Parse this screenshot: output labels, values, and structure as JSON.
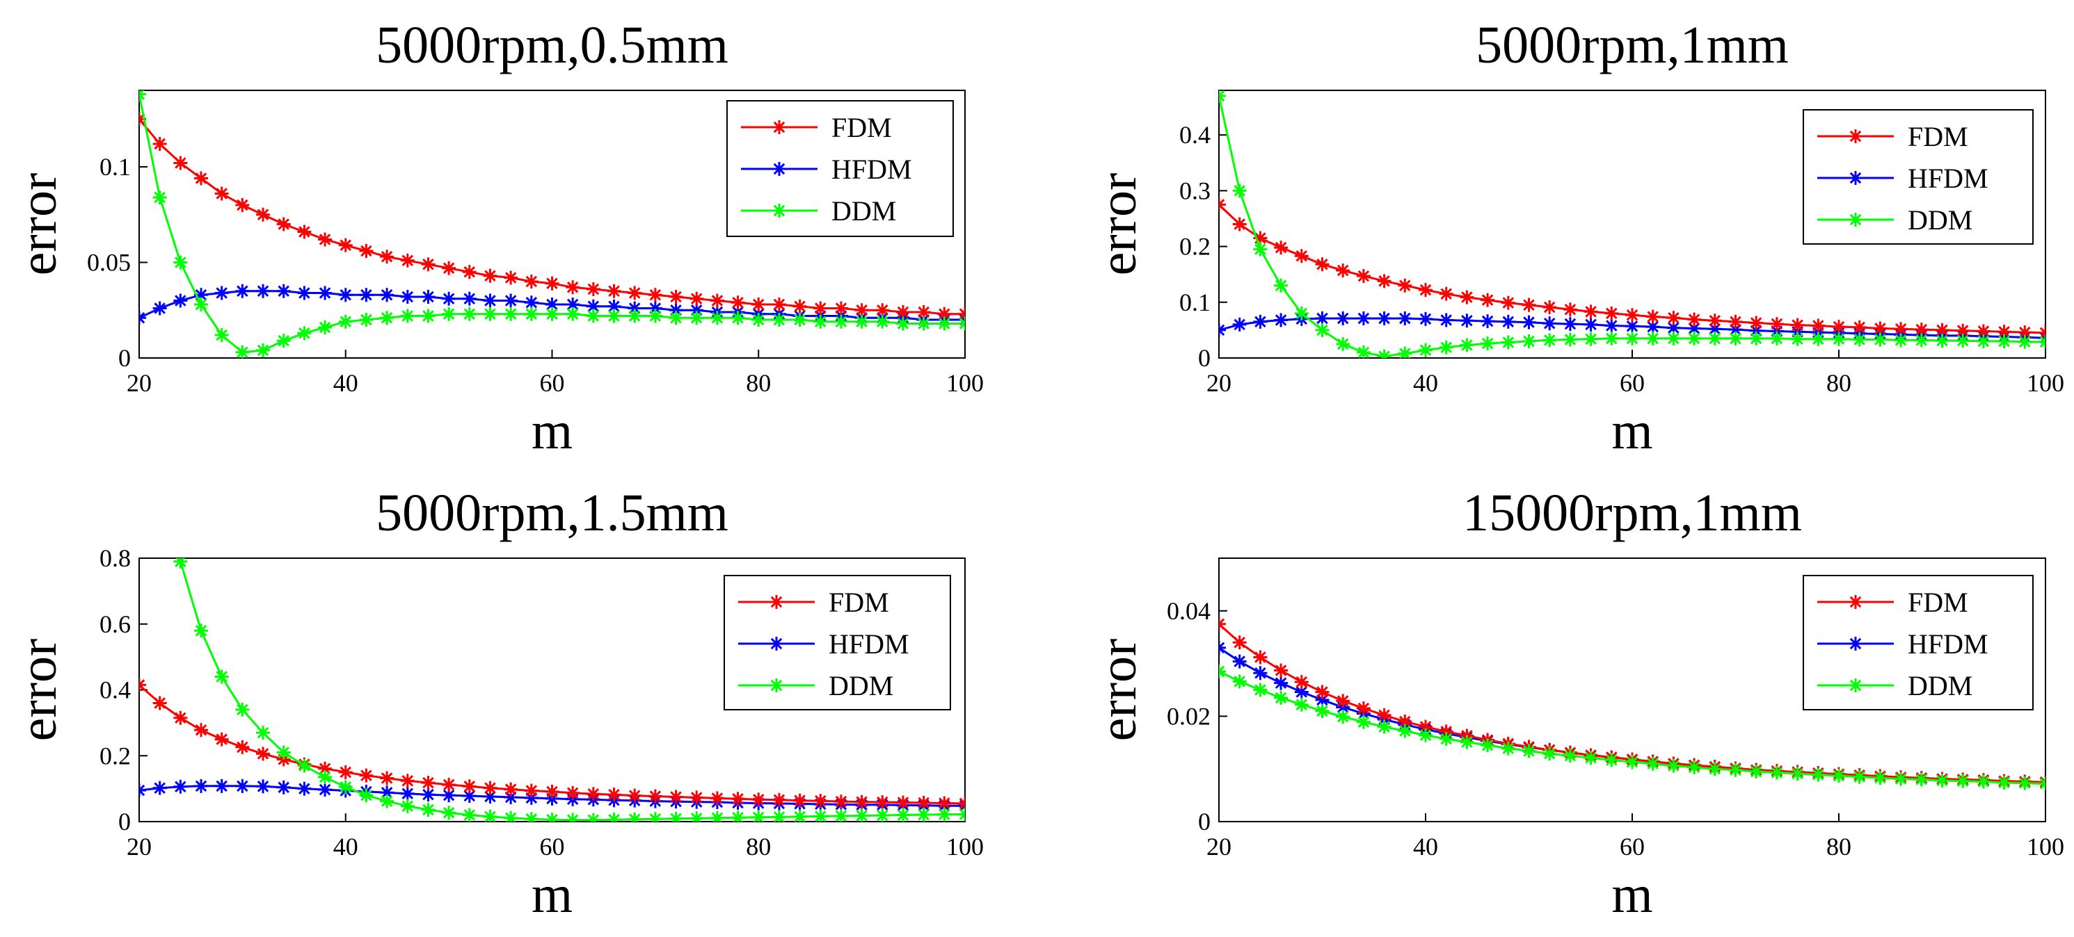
{
  "chart_data": [
    {
      "type": "line",
      "title": "5000rpm,0.5mm",
      "xlabel": "m",
      "ylabel": "error",
      "xlim": [
        20,
        100
      ],
      "ylim": [
        0,
        0.14
      ],
      "xticks": [
        "20",
        "40",
        "60",
        "80",
        "100"
      ],
      "yticks": [
        "0",
        "0.05",
        "0.1"
      ],
      "grid": false,
      "legend_position": "top-right",
      "x": [
        20,
        22,
        24,
        26,
        28,
        30,
        32,
        34,
        36,
        38,
        40,
        42,
        44,
        46,
        48,
        50,
        52,
        54,
        56,
        58,
        60,
        62,
        64,
        66,
        68,
        70,
        72,
        74,
        76,
        78,
        80,
        82,
        84,
        86,
        88,
        90,
        92,
        94,
        96,
        98,
        100
      ],
      "series": [
        {
          "name": "FDM",
          "color": "#ff0000",
          "values": [
            0.125,
            0.112,
            0.102,
            0.094,
            0.086,
            0.08,
            0.075,
            0.07,
            0.066,
            0.062,
            0.059,
            0.056,
            0.053,
            0.051,
            0.049,
            0.047,
            0.045,
            0.043,
            0.042,
            0.04,
            0.039,
            0.037,
            0.036,
            0.035,
            0.034,
            0.033,
            0.032,
            0.031,
            0.03,
            0.029,
            0.028,
            0.028,
            0.027,
            0.026,
            0.026,
            0.025,
            0.025,
            0.024,
            0.024,
            0.023,
            0.023
          ]
        },
        {
          "name": "HFDM",
          "color": "#0000ff",
          "values": [
            0.021,
            0.026,
            0.03,
            0.033,
            0.034,
            0.035,
            0.035,
            0.035,
            0.034,
            0.034,
            0.033,
            0.033,
            0.033,
            0.032,
            0.032,
            0.031,
            0.031,
            0.03,
            0.03,
            0.029,
            0.028,
            0.028,
            0.027,
            0.027,
            0.026,
            0.026,
            0.025,
            0.025,
            0.024,
            0.024,
            0.023,
            0.023,
            0.022,
            0.022,
            0.022,
            0.021,
            0.021,
            0.021,
            0.02,
            0.02,
            0.02
          ]
        },
        {
          "name": "DDM",
          "color": "#00ff00",
          "values": [
            0.138,
            0.084,
            0.05,
            0.028,
            0.012,
            0.003,
            0.004,
            0.009,
            0.013,
            0.016,
            0.019,
            0.02,
            0.021,
            0.022,
            0.022,
            0.023,
            0.023,
            0.023,
            0.023,
            0.023,
            0.023,
            0.023,
            0.022,
            0.022,
            0.022,
            0.022,
            0.021,
            0.021,
            0.021,
            0.021,
            0.02,
            0.02,
            0.02,
            0.019,
            0.019,
            0.019,
            0.019,
            0.018,
            0.018,
            0.018,
            0.018
          ]
        }
      ]
    },
    {
      "type": "line",
      "title": "5000rpm,1mm",
      "xlabel": "m",
      "ylabel": "error",
      "xlim": [
        20,
        100
      ],
      "ylim": [
        0,
        0.48
      ],
      "xticks": [
        "20",
        "40",
        "60",
        "80",
        "100"
      ],
      "yticks": [
        "0",
        "0.1",
        "0.2",
        "0.3",
        "0.4"
      ],
      "grid": false,
      "legend_position": "top-right",
      "x": [
        20,
        22,
        24,
        26,
        28,
        30,
        32,
        34,
        36,
        38,
        40,
        42,
        44,
        46,
        48,
        50,
        52,
        54,
        56,
        58,
        60,
        62,
        64,
        66,
        68,
        70,
        72,
        74,
        76,
        78,
        80,
        82,
        84,
        86,
        88,
        90,
        92,
        94,
        96,
        98,
        100
      ],
      "series": [
        {
          "name": "FDM",
          "color": "#ff0000",
          "values": [
            0.275,
            0.24,
            0.215,
            0.198,
            0.183,
            0.168,
            0.157,
            0.147,
            0.138,
            0.13,
            0.122,
            0.115,
            0.109,
            0.104,
            0.099,
            0.095,
            0.091,
            0.087,
            0.083,
            0.08,
            0.077,
            0.074,
            0.072,
            0.069,
            0.067,
            0.065,
            0.063,
            0.061,
            0.059,
            0.058,
            0.056,
            0.055,
            0.053,
            0.052,
            0.051,
            0.05,
            0.049,
            0.048,
            0.047,
            0.046,
            0.045
          ]
        },
        {
          "name": "HFDM",
          "color": "#0000ff",
          "values": [
            0.05,
            0.06,
            0.065,
            0.068,
            0.07,
            0.071,
            0.071,
            0.071,
            0.071,
            0.071,
            0.07,
            0.068,
            0.067,
            0.066,
            0.065,
            0.064,
            0.062,
            0.061,
            0.06,
            0.058,
            0.057,
            0.056,
            0.054,
            0.053,
            0.052,
            0.051,
            0.049,
            0.048,
            0.047,
            0.046,
            0.045,
            0.044,
            0.043,
            0.042,
            0.041,
            0.04,
            0.04,
            0.039,
            0.038,
            0.037,
            0.036
          ]
        },
        {
          "name": "DDM",
          "color": "#00ff00",
          "values": [
            0.47,
            0.3,
            0.195,
            0.13,
            0.08,
            0.05,
            0.025,
            0.01,
            0.003,
            0.008,
            0.014,
            0.019,
            0.023,
            0.026,
            0.028,
            0.03,
            0.032,
            0.033,
            0.034,
            0.035,
            0.035,
            0.035,
            0.035,
            0.035,
            0.035,
            0.035,
            0.035,
            0.035,
            0.034,
            0.034,
            0.034,
            0.033,
            0.033,
            0.032,
            0.032,
            0.031,
            0.031,
            0.03,
            0.03,
            0.029,
            0.029
          ]
        }
      ]
    },
    {
      "type": "line",
      "title": "5000rpm,1.5mm",
      "xlabel": "m",
      "ylabel": "error",
      "xlim": [
        20,
        100
      ],
      "ylim": [
        0,
        0.8
      ],
      "xticks": [
        "20",
        "40",
        "60",
        "80",
        "100"
      ],
      "yticks": [
        "0",
        "0.2",
        "0.4",
        "0.6",
        "0.8"
      ],
      "grid": false,
      "legend_position": "top-right",
      "x": [
        20,
        22,
        24,
        26,
        28,
        30,
        32,
        34,
        36,
        38,
        40,
        42,
        44,
        46,
        48,
        50,
        52,
        54,
        56,
        58,
        60,
        62,
        64,
        66,
        68,
        70,
        72,
        74,
        76,
        78,
        80,
        82,
        84,
        86,
        88,
        90,
        92,
        94,
        96,
        98,
        100
      ],
      "series": [
        {
          "name": "FDM",
          "color": "#ff0000",
          "values": [
            0.415,
            0.36,
            0.315,
            0.278,
            0.25,
            0.226,
            0.206,
            0.189,
            0.174,
            0.161,
            0.15,
            0.14,
            0.132,
            0.124,
            0.118,
            0.112,
            0.107,
            0.102,
            0.098,
            0.094,
            0.091,
            0.087,
            0.084,
            0.082,
            0.079,
            0.077,
            0.075,
            0.073,
            0.071,
            0.069,
            0.067,
            0.066,
            0.064,
            0.063,
            0.061,
            0.06,
            0.059,
            0.058,
            0.057,
            0.056,
            0.055
          ]
        },
        {
          "name": "HFDM",
          "color": "#0000ff",
          "values": [
            0.095,
            0.102,
            0.106,
            0.108,
            0.108,
            0.108,
            0.107,
            0.104,
            0.1,
            0.097,
            0.094,
            0.091,
            0.088,
            0.085,
            0.082,
            0.08,
            0.078,
            0.076,
            0.074,
            0.072,
            0.07,
            0.068,
            0.067,
            0.065,
            0.064,
            0.062,
            0.061,
            0.06,
            0.059,
            0.057,
            0.056,
            0.055,
            0.054,
            0.053,
            0.052,
            0.051,
            0.051,
            0.05,
            0.049,
            0.048,
            0.048
          ]
        },
        {
          "name": "DDM",
          "color": "#00ff00",
          "values": [
            null,
            null,
            0.79,
            0.58,
            0.44,
            0.34,
            0.27,
            0.21,
            0.17,
            0.135,
            0.105,
            0.08,
            0.062,
            0.047,
            0.036,
            0.027,
            0.02,
            0.015,
            0.011,
            0.008,
            0.006,
            0.005,
            0.005,
            0.006,
            0.007,
            0.008,
            0.009,
            0.01,
            0.011,
            0.012,
            0.013,
            0.014,
            0.015,
            0.016,
            0.017,
            0.018,
            0.019,
            0.02,
            0.021,
            0.022,
            0.022
          ]
        }
      ]
    },
    {
      "type": "line",
      "title": "15000rpm,1mm",
      "xlabel": "m",
      "ylabel": "error",
      "xlim": [
        20,
        100
      ],
      "ylim": [
        0,
        0.05
      ],
      "xticks": [
        "20",
        "40",
        "60",
        "80",
        "100"
      ],
      "yticks": [
        "0",
        "0.02",
        "0.04"
      ],
      "grid": false,
      "legend_position": "top-right",
      "x": [
        20,
        22,
        24,
        26,
        28,
        30,
        32,
        34,
        36,
        38,
        40,
        42,
        44,
        46,
        48,
        50,
        52,
        54,
        56,
        58,
        60,
        62,
        64,
        66,
        68,
        70,
        72,
        74,
        76,
        78,
        80,
        82,
        84,
        86,
        88,
        90,
        92,
        94,
        96,
        98,
        100
      ],
      "series": [
        {
          "name": "FDM",
          "color": "#ff0000",
          "values": [
            0.0375,
            0.034,
            0.0312,
            0.0287,
            0.0265,
            0.0246,
            0.0229,
            0.0215,
            0.0202,
            0.019,
            0.018,
            0.0171,
            0.0163,
            0.0155,
            0.0148,
            0.0142,
            0.0136,
            0.0131,
            0.0126,
            0.0122,
            0.0118,
            0.0114,
            0.011,
            0.0107,
            0.0104,
            0.0101,
            0.0098,
            0.0096,
            0.0094,
            0.0092,
            0.009,
            0.0088,
            0.0086,
            0.0084,
            0.0083,
            0.0081,
            0.008,
            0.0079,
            0.0077,
            0.0076,
            0.0075
          ]
        },
        {
          "name": "HFDM",
          "color": "#0000ff",
          "values": [
            0.033,
            0.0304,
            0.0282,
            0.0263,
            0.0246,
            0.0231,
            0.0217,
            0.0205,
            0.0194,
            0.0184,
            0.0175,
            0.0167,
            0.016,
            0.0153,
            0.0147,
            0.0141,
            0.0136,
            0.0131,
            0.0126,
            0.0122,
            0.0118,
            0.0114,
            0.011,
            0.0107,
            0.0104,
            0.0101,
            0.0098,
            0.0096,
            0.0094,
            0.0092,
            0.009,
            0.0088,
            0.0086,
            0.0084,
            0.0082,
            0.0081,
            0.0079,
            0.0078,
            0.0076,
            0.0075,
            0.0074
          ]
        },
        {
          "name": "DDM",
          "color": "#00ff00",
          "values": [
            0.0285,
            0.0266,
            0.025,
            0.0235,
            0.0222,
            0.021,
            0.0199,
            0.0189,
            0.018,
            0.0172,
            0.0164,
            0.0157,
            0.0151,
            0.0145,
            0.0139,
            0.0134,
            0.0129,
            0.0125,
            0.0121,
            0.0117,
            0.0113,
            0.011,
            0.0106,
            0.0103,
            0.01,
            0.0098,
            0.0095,
            0.0093,
            0.0091,
            0.0089,
            0.0087,
            0.0085,
            0.0083,
            0.0081,
            0.008,
            0.0078,
            0.0077,
            0.0076,
            0.0074,
            0.0073,
            0.0072
          ]
        }
      ]
    }
  ]
}
